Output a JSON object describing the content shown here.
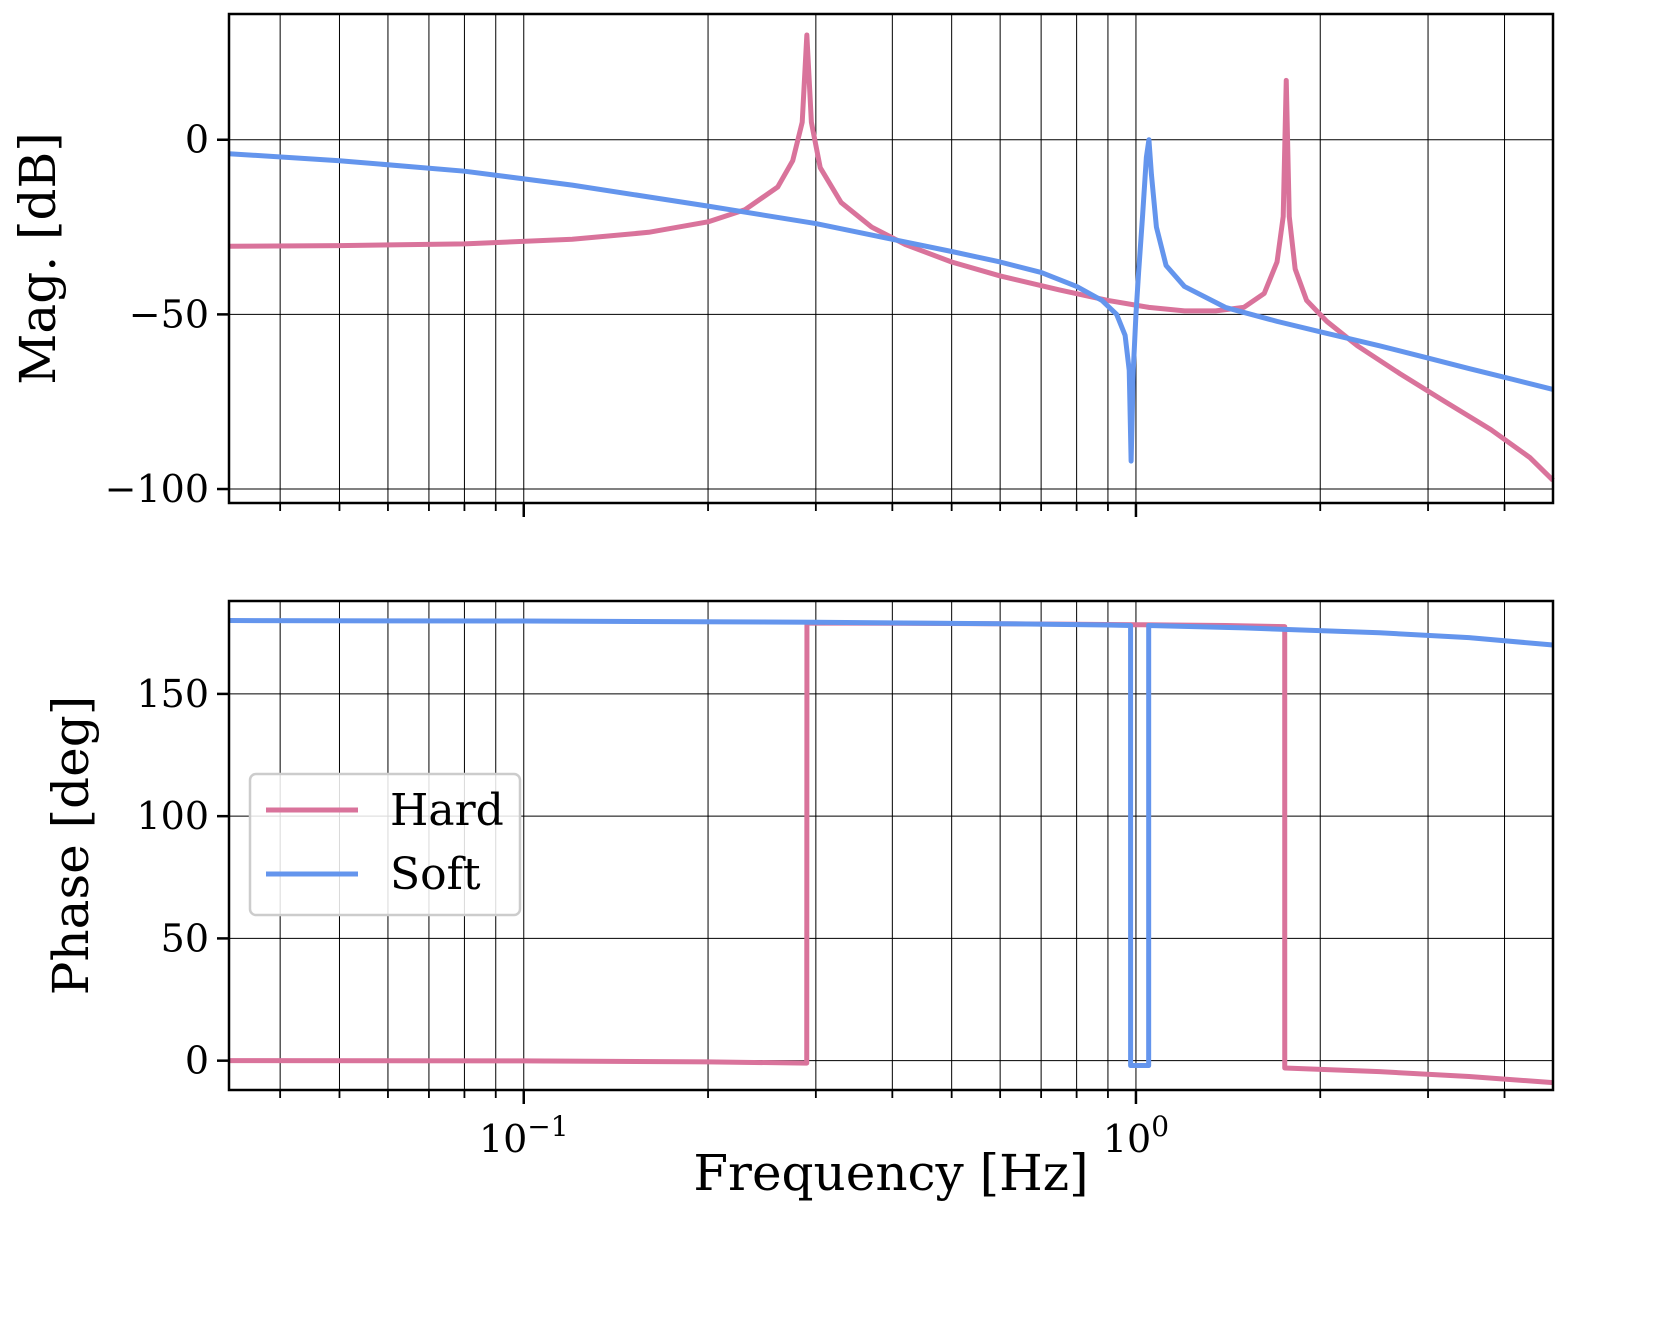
{
  "chart_data": [
    {
      "type": "line",
      "panel": "magnitude",
      "xscale": "log",
      "xlim": [
        0.033,
        4.8
      ],
      "ylim": [
        -104,
        36
      ],
      "ylabel": "Mag. [dB]",
      "yticks": [
        0,
        -50,
        -100
      ],
      "ytick_labels": [
        "0",
        "−50",
        "−100"
      ],
      "grid": true,
      "series": [
        {
          "name": "Hard",
          "color": "#d9739b",
          "x": [
            0.033,
            0.05,
            0.08,
            0.12,
            0.16,
            0.2,
            0.23,
            0.26,
            0.275,
            0.285,
            0.29,
            0.295,
            0.305,
            0.33,
            0.37,
            0.42,
            0.5,
            0.6,
            0.75,
            0.9,
            1.05,
            1.2,
            1.35,
            1.5,
            1.62,
            1.7,
            1.74,
            1.76,
            1.78,
            1.82,
            1.9,
            2.05,
            2.3,
            2.7,
            3.2,
            3.8,
            4.4,
            4.8
          ],
          "y": [
            -30.5,
            -30.3,
            -29.8,
            -28.5,
            -26.5,
            -23.5,
            -20,
            -13.5,
            -6,
            5,
            30,
            5,
            -8,
            -18,
            -25,
            -30,
            -35,
            -39,
            -43,
            -46,
            -48,
            -49,
            -49,
            -48,
            -44,
            -35,
            -22,
            17,
            -22,
            -37,
            -46,
            -52,
            -59,
            -67,
            -75,
            -83,
            -91,
            -97.5
          ]
        },
        {
          "name": "Soft",
          "color": "#6495ed",
          "x": [
            0.033,
            0.05,
            0.08,
            0.12,
            0.2,
            0.3,
            0.4,
            0.5,
            0.6,
            0.7,
            0.8,
            0.88,
            0.93,
            0.96,
            0.975,
            0.982,
            0.99,
            1.0,
            1.01,
            1.025,
            1.04,
            1.05,
            1.06,
            1.08,
            1.12,
            1.2,
            1.4,
            1.7,
            2.0,
            2.5,
            3.0,
            3.5,
            4.0,
            4.8
          ],
          "y": [
            -4,
            -6,
            -9,
            -13,
            -19,
            -24,
            -28.5,
            -32,
            -35,
            -38,
            -42,
            -46,
            -50,
            -56,
            -66,
            -92,
            -66,
            -50,
            -38,
            -22,
            -5,
            0,
            -10,
            -25,
            -36,
            -42,
            -48,
            -52,
            -55,
            -59,
            -62.5,
            -65.5,
            -68,
            -71.5
          ]
        }
      ]
    },
    {
      "type": "line",
      "panel": "phase",
      "xscale": "log",
      "xlim": [
        0.033,
        4.8
      ],
      "ylim": [
        -12,
        188
      ],
      "xlabel": "Frequency [Hz]",
      "ylabel": "Phase [deg]",
      "yticks": [
        0,
        50,
        100,
        150
      ],
      "ytick_labels": [
        "0",
        "50",
        "100",
        "150"
      ],
      "xticks": [
        0.1,
        1
      ],
      "xtick_labels": [
        {
          "base": "10",
          "exp": "−1"
        },
        {
          "base": "10",
          "exp": "0"
        }
      ],
      "grid": true,
      "series": [
        {
          "name": "Hard",
          "color": "#d9739b",
          "x": [
            0.033,
            0.1,
            0.2,
            0.2899,
            0.2901,
            0.5,
            0.8,
            1.0,
            1.4,
            1.7499,
            1.7501,
            2.5,
            3.5,
            4.8
          ],
          "y": [
            0,
            -0.1,
            -0.5,
            -1,
            179,
            178.8,
            178.5,
            178.3,
            178,
            177.5,
            -3,
            -4.5,
            -6.5,
            -9
          ]
        },
        {
          "name": "Soft",
          "color": "#6495ed",
          "x": [
            0.033,
            0.1,
            0.3,
            0.6,
            0.9,
            0.98,
            0.9801,
            1.049,
            1.0491,
            1.5,
            2.5,
            3.5,
            4.8
          ],
          "y": [
            180,
            179.8,
            179.3,
            178.7,
            178.2,
            178,
            -2,
            -2,
            178,
            177,
            175,
            173,
            170
          ]
        }
      ]
    }
  ],
  "legend": {
    "placement": "center-left",
    "entries": [
      {
        "label": "Hard",
        "color": "#d9739b"
      },
      {
        "label": "Soft",
        "color": "#6495ed"
      }
    ]
  }
}
